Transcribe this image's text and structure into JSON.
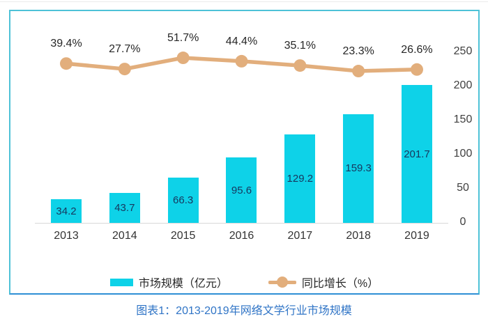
{
  "chart_data": {
    "type": "bar+line combo",
    "categories": [
      "2013",
      "2014",
      "2015",
      "2016",
      "2017",
      "2018",
      "2019"
    ],
    "series": [
      {
        "name": "市场规模（亿元）",
        "type": "bar",
        "values": [
          34.2,
          43.7,
          66.3,
          95.6,
          129.2,
          159.3,
          201.7
        ],
        "value_labels": [
          "34.2",
          "43.7",
          "66.3",
          "95.6",
          "129.2",
          "159.3",
          "201.7"
        ],
        "color": "#0ED2E8"
      },
      {
        "name": "同比增长（%）",
        "type": "line",
        "values": [
          39.4,
          27.7,
          51.7,
          44.4,
          35.1,
          23.3,
          26.6
        ],
        "value_labels": [
          "39.4%",
          "27.7%",
          "51.7%",
          "44.4%",
          "35.1%",
          "23.3%",
          "26.6%"
        ],
        "color": "#E2AE7C"
      }
    ],
    "y_axis_right": {
      "side": "right",
      "ticks": [
        0,
        50,
        100,
        150,
        200,
        250
      ],
      "range": [
        0,
        250
      ]
    },
    "legend": [
      {
        "label": "市场规模（亿元）",
        "swatch": "bar"
      },
      {
        "label": "同比增长（%）",
        "swatch": "line"
      }
    ],
    "grid": "off",
    "legend_position": "bottom",
    "caption": "图表1：2013-2019年网络文学行业市场规模"
  },
  "colors": {
    "bar": "#0ED2E8",
    "line": "#E2AE7C",
    "panel_border": "#4EC2D7",
    "panel_border_bottom": "#2E8FD5",
    "caption_text": "#2F74C6",
    "bar_value_text": "#17375E",
    "axis_line": "#D9D9D9"
  }
}
